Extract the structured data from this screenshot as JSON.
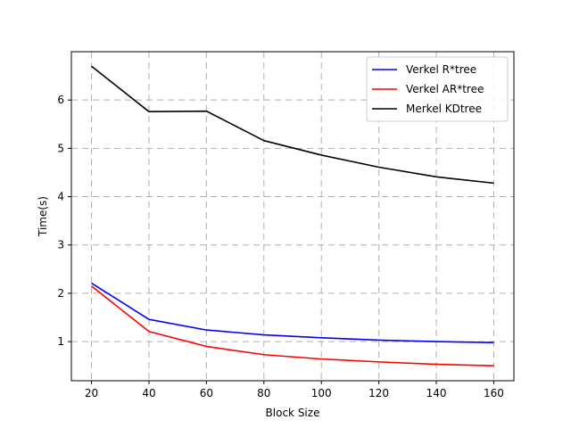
{
  "chart_data": {
    "type": "line",
    "title": "",
    "xlabel": "Block Size",
    "ylabel": "Time(s)",
    "x": [
      20,
      40,
      60,
      80,
      100,
      120,
      140,
      160
    ],
    "xticks": [
      20,
      40,
      60,
      80,
      100,
      120,
      140,
      160
    ],
    "yticks": [
      1,
      2,
      3,
      4,
      5,
      6
    ],
    "xlim": [
      13,
      167
    ],
    "ylim": [
      0.19,
      7.0
    ],
    "grid": true,
    "grid_style": "dashed",
    "legend_position": "top-right",
    "series": [
      {
        "name": "Verkel R*tree",
        "color": "#0000ff",
        "values": [
          2.21,
          1.46,
          1.24,
          1.14,
          1.08,
          1.03,
          1.0,
          0.98
        ]
      },
      {
        "name": "Verkel AR*tree",
        "color": "#ff0000",
        "values": [
          2.15,
          1.21,
          0.9,
          0.73,
          0.64,
          0.58,
          0.53,
          0.5
        ]
      },
      {
        "name": "Merkel KDtree",
        "color": "#000000",
        "values": [
          6.7,
          5.76,
          5.77,
          5.16,
          4.86,
          4.61,
          4.41,
          4.28
        ]
      }
    ]
  }
}
